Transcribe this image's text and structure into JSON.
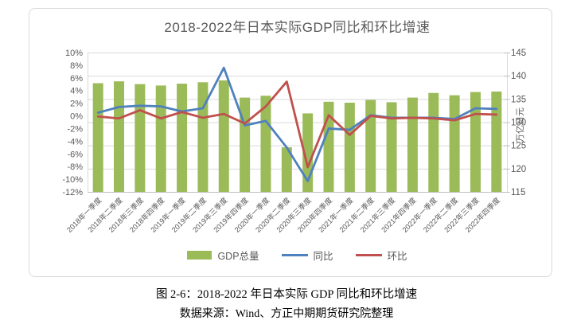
{
  "chart": {
    "title": "2018-2022年日本实际GDP同比和环比增速",
    "legend": [
      {
        "label": "GDP总量",
        "type": "bar",
        "color": "#9bbb59"
      },
      {
        "label": "同比",
        "type": "line",
        "color": "#4e81bd"
      },
      {
        "label": "环比",
        "type": "line",
        "color": "#c0504d"
      }
    ]
  },
  "chart_data": {
    "type": "combo-bar-line",
    "title": "2018-2022年日本实际GDP同比和环比增速",
    "categories": [
      "2018年一季度",
      "2018年二季度",
      "2018年三季度",
      "2018年四季度",
      "2019年一季度",
      "2019年二季度",
      "2019年三季度",
      "2019年四季度",
      "2020年一季度",
      "2020年二季度",
      "2020年三季度",
      "2020年四季度",
      "2021年一季度",
      "2021年二季度",
      "2021年三季度",
      "2021年四季度",
      "2022年一季度",
      "2022年二季度",
      "2022年三季度",
      "2022年四季度"
    ],
    "series": [
      {
        "name": "GDP总量",
        "type": "bar",
        "axis": "right",
        "color": "#9bbb59",
        "values": [
          138.4,
          138.8,
          138.2,
          137.9,
          138.3,
          138.6,
          139.0,
          135.3,
          135.7,
          124.6,
          131.9,
          134.4,
          134.2,
          134.8,
          134.3,
          135.3,
          136.3,
          135.8,
          136.5,
          136.6
        ]
      },
      {
        "name": "同比",
        "type": "line",
        "axis": "left",
        "color": "#4e81bd",
        "values": [
          0.5,
          1.4,
          1.6,
          1.5,
          0.7,
          1.2,
          7.6,
          -1.5,
          -0.8,
          -5.0,
          -10.3,
          -2.0,
          -2.2,
          0.1,
          -0.3,
          -0.3,
          -0.3,
          -0.5,
          1.2,
          1.1
        ]
      },
      {
        "name": "环比",
        "type": "line",
        "axis": "left",
        "color": "#c0504d",
        "values": [
          -0.1,
          -0.4,
          0.9,
          -0.4,
          0.6,
          -0.3,
          0.3,
          -1.2,
          1.5,
          5.4,
          -8.1,
          0.1,
          -3.0,
          0.0,
          -0.4,
          -0.3,
          -0.4,
          -0.7,
          0.3,
          0.2
        ]
      }
    ],
    "left_axis": {
      "unit": "%",
      "min": -12,
      "max": 10,
      "ticks": [
        10,
        8,
        6,
        4,
        2,
        0,
        -2,
        -4,
        -6,
        -8,
        -10,
        -12
      ]
    },
    "right_axis": {
      "title": "万亿日元",
      "min": 115,
      "max": 145,
      "ticks": [
        145,
        140,
        135,
        130,
        125,
        120,
        115
      ]
    },
    "grid": "horizontal",
    "legend_position": "bottom"
  },
  "caption": {
    "line1": "图 2-6：2018-2022 年日本实际 GDP 同比和环比增速",
    "line2": "数据来源：Wind、方正中期期货研究院整理"
  }
}
